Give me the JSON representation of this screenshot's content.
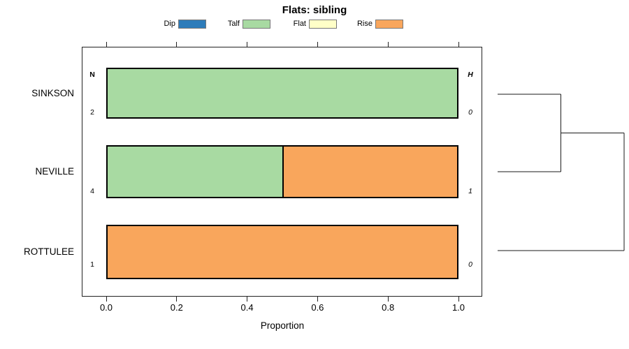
{
  "chart_data": {
    "type": "bar",
    "orientation": "horizontal",
    "stacked": true,
    "title": "Flats: sibling",
    "xlabel": "Proportion",
    "xlim": [
      0,
      1
    ],
    "xticks": [
      {
        "value": 0.0,
        "label": "0.0"
      },
      {
        "value": 0.2,
        "label": "0.2"
      },
      {
        "value": 0.4,
        "label": "0.4"
      },
      {
        "value": 0.6,
        "label": "0.6"
      },
      {
        "value": 0.8,
        "label": "0.8"
      },
      {
        "value": 1.0,
        "label": "1.0"
      }
    ],
    "grid": false,
    "legend_position": "top",
    "categories": [
      "SINKSON",
      "NEVILLE",
      "ROTTULEE"
    ],
    "series": [
      {
        "name": "Dip",
        "color": "#2D7CBA",
        "values": [
          0,
          0,
          0
        ]
      },
      {
        "name": "Talf",
        "color": "#A8DAA2",
        "values": [
          1.0,
          0.5,
          0
        ]
      },
      {
        "name": "Flat",
        "color": "#FFFFC8",
        "values": [
          0,
          0,
          0
        ]
      },
      {
        "name": "Rise",
        "color": "#F9A65C",
        "values": [
          0,
          0.5,
          1.0
        ]
      }
    ],
    "left_column": {
      "header": "N",
      "values": [
        "2",
        "4",
        "1"
      ]
    },
    "right_column": {
      "header": "H",
      "values": [
        "0",
        "1",
        "0"
      ]
    },
    "dendrogram": {
      "leaves": [
        "SINKSON",
        "NEVILLE",
        "ROTTULEE"
      ],
      "merges": [
        {
          "members": [
            "SINKSON",
            "NEVILLE"
          ],
          "height": 0.5
        },
        {
          "members": [
            "SINKSON+NEVILLE",
            "ROTTULEE"
          ],
          "height": 1.0
        }
      ],
      "line_color": "#1a1a1a"
    }
  }
}
